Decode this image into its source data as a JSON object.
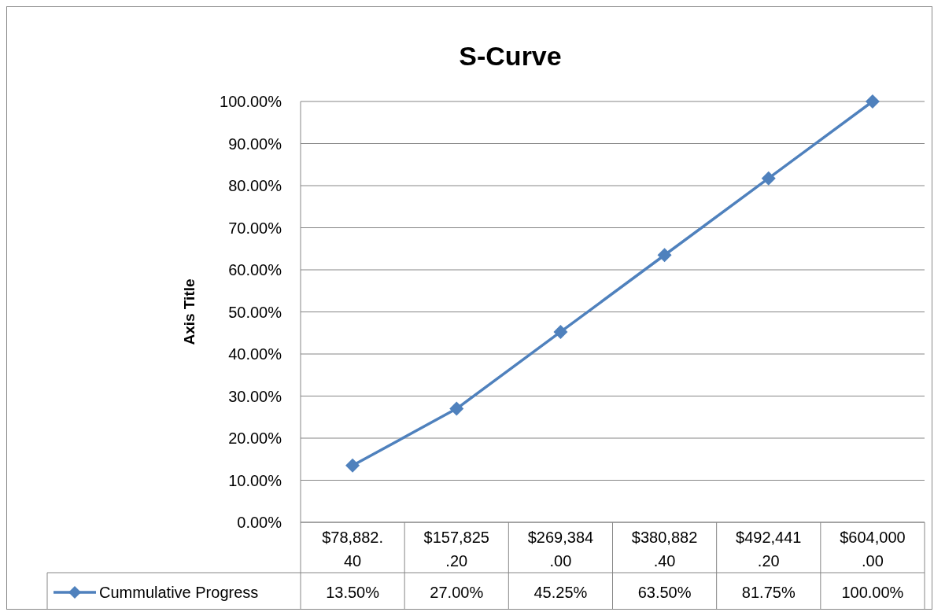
{
  "chart_data": {
    "type": "line",
    "title": "S-Curve",
    "ylabel": "Axis Title",
    "categories": [
      "$78,882.40",
      "$157,825.20",
      "$269,384.00",
      "$380,882.40",
      "$492,441.20",
      "$604,000.00"
    ],
    "series": [
      {
        "name": "Cummulative Progress",
        "color": "#4f81bd",
        "values": [
          13.5,
          27,
          45.25,
          63.5,
          81.75,
          100
        ],
        "value_labels": [
          "13.50%",
          "27.00%",
          "45.25%",
          "63.50%",
          "81.75%",
          "100.00%"
        ]
      }
    ],
    "ylim": [
      0,
      100
    ],
    "yticks": [
      {
        "value": 0,
        "label": "0.00%"
      },
      {
        "value": 10,
        "label": "10.00%"
      },
      {
        "value": 20,
        "label": "20.00%"
      },
      {
        "value": 30,
        "label": "30.00%"
      },
      {
        "value": 40,
        "label": "40.00%"
      },
      {
        "value": 50,
        "label": "50.00%"
      },
      {
        "value": 60,
        "label": "60.00%"
      },
      {
        "value": 70,
        "label": "70.00%"
      },
      {
        "value": 80,
        "label": "80.00%"
      },
      {
        "value": 90,
        "label": "90.00%"
      },
      {
        "value": 100,
        "label": "100.00%"
      }
    ],
    "grid": "y",
    "legend": "bottom",
    "marker": "diamond",
    "line_style": "solid"
  }
}
